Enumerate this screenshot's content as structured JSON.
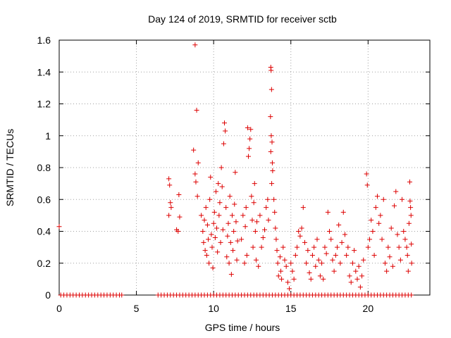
{
  "chart_data": {
    "type": "scatter",
    "title": "Day 124 of 2019, SRMTID for receiver sctb",
    "xlabel": "GPS time / hours",
    "ylabel": "SRMTID / TECUs",
    "xlim": [
      0,
      24
    ],
    "ylim": [
      0,
      1.6
    ],
    "x_ticks": [
      0,
      5,
      10,
      15,
      20
    ],
    "y_ticks": [
      0,
      0.2,
      0.4,
      0.6,
      0.8,
      1,
      1.2,
      1.4,
      1.6
    ],
    "x_tick_labels": [
      "0",
      "5",
      "10",
      "15",
      "20"
    ],
    "y_tick_labels": [
      "0",
      "0.2",
      "0.4",
      "0.6",
      "0.8",
      "1",
      "1.2",
      "1.4",
      "1.6"
    ],
    "grid": true,
    "marker": "+",
    "color": "#dd0000",
    "series": [
      {
        "name": "SRMTID",
        "points": [
          [
            0.0,
            0.43
          ],
          [
            0.1,
            0.0
          ],
          [
            0.3,
            0.0
          ],
          [
            0.5,
            0.0
          ],
          [
            0.7,
            0.0
          ],
          [
            0.9,
            0.0
          ],
          [
            1.1,
            0.0
          ],
          [
            1.3,
            0.0
          ],
          [
            1.5,
            0.0
          ],
          [
            1.7,
            0.0
          ],
          [
            1.9,
            0.0
          ],
          [
            2.1,
            0.0
          ],
          [
            2.3,
            0.0
          ],
          [
            2.5,
            0.0
          ],
          [
            2.7,
            0.0
          ],
          [
            2.9,
            0.0
          ],
          [
            3.1,
            0.0
          ],
          [
            3.3,
            0.0
          ],
          [
            3.5,
            0.0
          ],
          [
            3.7,
            0.0
          ],
          [
            3.9,
            0.0
          ],
          [
            4.05,
            0.0
          ],
          [
            6.4,
            0.0
          ],
          [
            6.6,
            0.0
          ],
          [
            6.8,
            0.0
          ],
          [
            7.0,
            0.0
          ],
          [
            7.2,
            0.0
          ],
          [
            7.4,
            0.0
          ],
          [
            7.6,
            0.0
          ],
          [
            7.8,
            0.0
          ],
          [
            8.0,
            0.0
          ],
          [
            8.2,
            0.0
          ],
          [
            8.4,
            0.0
          ],
          [
            8.6,
            0.0
          ],
          [
            8.8,
            0.0
          ],
          [
            9.0,
            0.0
          ],
          [
            9.2,
            0.0
          ],
          [
            9.4,
            0.0
          ],
          [
            9.6,
            0.0
          ],
          [
            9.8,
            0.0
          ],
          [
            10.0,
            0.0
          ],
          [
            10.2,
            0.0
          ],
          [
            10.4,
            0.0
          ],
          [
            10.6,
            0.0
          ],
          [
            10.8,
            0.0
          ],
          [
            11.0,
            0.0
          ],
          [
            11.2,
            0.0
          ],
          [
            11.4,
            0.0
          ],
          [
            11.6,
            0.0
          ],
          [
            11.8,
            0.0
          ],
          [
            12.0,
            0.0
          ],
          [
            12.2,
            0.0
          ],
          [
            12.4,
            0.0
          ],
          [
            12.6,
            0.0
          ],
          [
            12.8,
            0.0
          ],
          [
            13.0,
            0.0
          ],
          [
            13.2,
            0.0
          ],
          [
            13.4,
            0.0
          ],
          [
            13.6,
            0.0
          ],
          [
            13.8,
            0.0
          ],
          [
            14.0,
            0.0
          ],
          [
            14.2,
            0.0
          ],
          [
            14.4,
            0.0
          ],
          [
            14.6,
            0.0
          ],
          [
            14.8,
            0.0
          ],
          [
            15.0,
            0.0
          ],
          [
            15.2,
            0.0
          ],
          [
            15.4,
            0.0
          ],
          [
            15.6,
            0.0
          ],
          [
            15.8,
            0.0
          ],
          [
            16.0,
            0.0
          ],
          [
            16.2,
            0.0
          ],
          [
            16.4,
            0.0
          ],
          [
            16.6,
            0.0
          ],
          [
            16.8,
            0.0
          ],
          [
            17.0,
            0.0
          ],
          [
            17.2,
            0.0
          ],
          [
            17.4,
            0.0
          ],
          [
            17.6,
            0.0
          ],
          [
            17.8,
            0.0
          ],
          [
            18.0,
            0.0
          ],
          [
            18.2,
            0.0
          ],
          [
            18.4,
            0.0
          ],
          [
            18.6,
            0.0
          ],
          [
            18.8,
            0.0
          ],
          [
            19.0,
            0.0
          ],
          [
            19.2,
            0.0
          ],
          [
            19.4,
            0.0
          ],
          [
            19.6,
            0.0
          ],
          [
            19.8,
            0.0
          ],
          [
            20.0,
            0.0
          ],
          [
            20.2,
            0.0
          ],
          [
            20.4,
            0.0
          ],
          [
            20.6,
            0.0
          ],
          [
            20.8,
            0.0
          ],
          [
            21.0,
            0.0
          ],
          [
            21.2,
            0.0
          ],
          [
            21.4,
            0.0
          ],
          [
            21.6,
            0.0
          ],
          [
            21.8,
            0.0
          ],
          [
            22.0,
            0.0
          ],
          [
            22.2,
            0.0
          ],
          [
            22.4,
            0.0
          ],
          [
            22.6,
            0.0
          ],
          [
            22.8,
            0.0
          ],
          [
            7.1,
            0.73
          ],
          [
            7.15,
            0.69
          ],
          [
            7.2,
            0.58
          ],
          [
            7.25,
            0.55
          ],
          [
            7.1,
            0.5
          ],
          [
            7.6,
            0.41
          ],
          [
            7.7,
            0.4
          ],
          [
            7.8,
            0.49
          ],
          [
            7.75,
            0.63
          ],
          [
            8.8,
            1.57
          ],
          [
            8.9,
            1.16
          ],
          [
            8.7,
            0.91
          ],
          [
            8.8,
            0.76
          ],
          [
            8.85,
            0.71
          ],
          [
            9.0,
            0.83
          ],
          [
            8.95,
            0.62
          ],
          [
            9.2,
            0.5
          ],
          [
            9.3,
            0.4
          ],
          [
            9.35,
            0.33
          ],
          [
            9.4,
            0.47
          ],
          [
            9.45,
            0.28
          ],
          [
            9.5,
            0.55
          ],
          [
            9.55,
            0.25
          ],
          [
            9.6,
            0.44
          ],
          [
            9.65,
            0.35
          ],
          [
            9.7,
            0.2
          ],
          [
            9.75,
            0.6
          ],
          [
            9.8,
            0.74
          ],
          [
            9.85,
            0.38
          ],
          [
            9.9,
            0.3
          ],
          [
            9.95,
            0.17
          ],
          [
            10.0,
            0.45
          ],
          [
            10.05,
            0.52
          ],
          [
            10.1,
            0.36
          ],
          [
            10.15,
            0.65
          ],
          [
            10.2,
            0.42
          ],
          [
            10.25,
            0.27
          ],
          [
            10.3,
            0.7
          ],
          [
            10.35,
            0.5
          ],
          [
            10.4,
            0.58
          ],
          [
            10.45,
            0.33
          ],
          [
            10.5,
            0.8
          ],
          [
            10.55,
            0.68
          ],
          [
            10.6,
            0.41
          ],
          [
            10.65,
            0.95
          ],
          [
            10.7,
            1.08
          ],
          [
            10.75,
            1.03
          ],
          [
            10.8,
            0.55
          ],
          [
            10.85,
            0.24
          ],
          [
            10.9,
            0.37
          ],
          [
            10.95,
            0.45
          ],
          [
            11.0,
            0.2
          ],
          [
            11.05,
            0.62
          ],
          [
            11.1,
            0.33
          ],
          [
            11.15,
            0.13
          ],
          [
            11.2,
            0.5
          ],
          [
            11.25,
            0.28
          ],
          [
            11.3,
            0.4
          ],
          [
            11.35,
            0.57
          ],
          [
            11.4,
            0.77
          ],
          [
            11.45,
            0.46
          ],
          [
            11.5,
            0.22
          ],
          [
            11.55,
            0.34
          ],
          [
            11.8,
            0.35
          ],
          [
            11.9,
            0.5
          ],
          [
            12.0,
            0.2
          ],
          [
            12.05,
            0.43
          ],
          [
            12.1,
            0.55
          ],
          [
            12.15,
            0.25
          ],
          [
            12.2,
            1.05
          ],
          [
            12.25,
            0.87
          ],
          [
            12.3,
            0.92
          ],
          [
            12.35,
            0.98
          ],
          [
            12.4,
            1.04
          ],
          [
            12.45,
            0.62
          ],
          [
            12.5,
            0.47
          ],
          [
            12.55,
            0.3
          ],
          [
            12.6,
            0.58
          ],
          [
            12.65,
            0.7
          ],
          [
            12.7,
            0.4
          ],
          [
            12.75,
            0.22
          ],
          [
            12.8,
            0.46
          ],
          [
            12.9,
            0.18
          ],
          [
            13.0,
            0.5
          ],
          [
            13.1,
            0.3
          ],
          [
            13.2,
            0.36
          ],
          [
            13.3,
            0.41
          ],
          [
            13.4,
            0.55
          ],
          [
            13.5,
            0.6
          ],
          [
            13.55,
            0.47
          ],
          [
            13.7,
            1.43
          ],
          [
            13.72,
            1.41
          ],
          [
            13.75,
            1.29
          ],
          [
            13.68,
            1.12
          ],
          [
            13.73,
            1.0
          ],
          [
            13.78,
            0.96
          ],
          [
            13.7,
            0.9
          ],
          [
            13.8,
            0.83
          ],
          [
            13.82,
            0.78
          ],
          [
            13.76,
            0.7
          ],
          [
            13.9,
            0.6
          ],
          [
            13.95,
            0.52
          ],
          [
            14.0,
            0.42
          ],
          [
            14.05,
            0.35
          ],
          [
            14.1,
            0.28
          ],
          [
            14.15,
            0.2
          ],
          [
            14.2,
            0.12
          ],
          [
            14.3,
            0.24
          ],
          [
            14.35,
            0.15
          ],
          [
            14.4,
            0.1
          ],
          [
            14.5,
            0.3
          ],
          [
            14.6,
            0.22
          ],
          [
            14.7,
            0.18
          ],
          [
            14.8,
            0.08
          ],
          [
            14.9,
            0.04
          ],
          [
            15.0,
            0.2
          ],
          [
            15.1,
            0.15
          ],
          [
            15.2,
            0.1
          ],
          [
            15.3,
            0.25
          ],
          [
            15.4,
            0.3
          ],
          [
            15.5,
            0.4
          ],
          [
            15.6,
            0.37
          ],
          [
            15.7,
            0.42
          ],
          [
            15.8,
            0.55
          ],
          [
            15.9,
            0.33
          ],
          [
            16.0,
            0.2
          ],
          [
            16.1,
            0.28
          ],
          [
            16.2,
            0.14
          ],
          [
            16.3,
            0.1
          ],
          [
            16.4,
            0.25
          ],
          [
            16.5,
            0.3
          ],
          [
            16.6,
            0.18
          ],
          [
            16.7,
            0.35
          ],
          [
            16.8,
            0.22
          ],
          [
            16.9,
            0.12
          ],
          [
            17.0,
            0.2
          ],
          [
            17.1,
            0.1
          ],
          [
            17.2,
            0.3
          ],
          [
            17.3,
            0.26
          ],
          [
            17.4,
            0.52
          ],
          [
            17.5,
            0.4
          ],
          [
            17.6,
            0.35
          ],
          [
            17.7,
            0.22
          ],
          [
            17.8,
            0.15
          ],
          [
            17.9,
            0.25
          ],
          [
            18.0,
            0.3
          ],
          [
            18.1,
            0.44
          ],
          [
            18.2,
            0.2
          ],
          [
            18.3,
            0.33
          ],
          [
            18.4,
            0.52
          ],
          [
            18.5,
            0.38
          ],
          [
            18.6,
            0.25
          ],
          [
            18.7,
            0.3
          ],
          [
            18.8,
            0.12
          ],
          [
            18.9,
            0.08
          ],
          [
            19.0,
            0.2
          ],
          [
            19.1,
            0.28
          ],
          [
            19.2,
            0.15
          ],
          [
            19.3,
            0.1
          ],
          [
            19.4,
            0.18
          ],
          [
            19.5,
            0.05
          ],
          [
            19.6,
            0.12
          ],
          [
            19.7,
            0.22
          ],
          [
            19.9,
            0.76
          ],
          [
            19.95,
            0.69
          ],
          [
            20.0,
            0.3
          ],
          [
            20.1,
            0.35
          ],
          [
            20.2,
            0.47
          ],
          [
            20.3,
            0.4
          ],
          [
            20.4,
            0.25
          ],
          [
            20.5,
            0.55
          ],
          [
            20.6,
            0.62
          ],
          [
            20.7,
            0.45
          ],
          [
            20.8,
            0.5
          ],
          [
            20.9,
            0.35
          ],
          [
            21.0,
            0.6
          ],
          [
            21.1,
            0.2
          ],
          [
            21.2,
            0.15
          ],
          [
            21.3,
            0.3
          ],
          [
            21.4,
            0.24
          ],
          [
            21.5,
            0.42
          ],
          [
            21.6,
            0.18
          ],
          [
            21.7,
            0.56
          ],
          [
            21.8,
            0.65
          ],
          [
            21.9,
            0.38
          ],
          [
            22.0,
            0.3
          ],
          [
            22.1,
            0.22
          ],
          [
            22.2,
            0.6
          ],
          [
            22.3,
            0.4
          ],
          [
            22.4,
            0.35
          ],
          [
            22.5,
            0.3
          ],
          [
            22.55,
            0.25
          ],
          [
            22.6,
            0.15
          ],
          [
            22.65,
            0.45
          ],
          [
            22.7,
            0.71
          ],
          [
            22.72,
            0.59
          ],
          [
            22.75,
            0.55
          ],
          [
            22.78,
            0.5
          ],
          [
            22.8,
            0.32
          ],
          [
            22.82,
            0.2
          ]
        ]
      }
    ]
  }
}
